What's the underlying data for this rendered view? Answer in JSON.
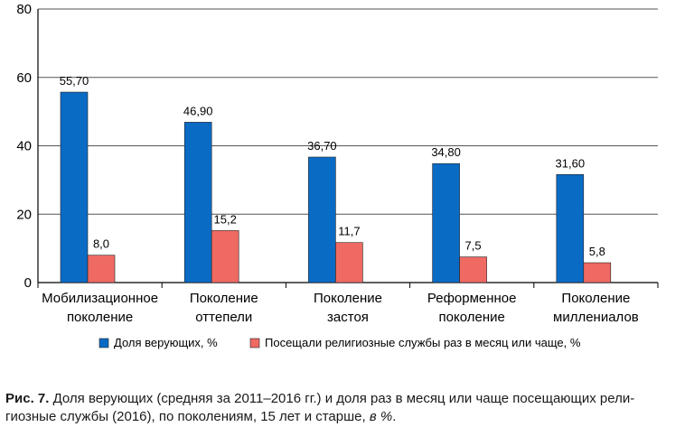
{
  "chart_data": {
    "type": "bar",
    "categories": [
      [
        "Мобилизационное",
        "поколение"
      ],
      [
        "Поколение",
        "оттепели"
      ],
      [
        "Поколение",
        "застоя"
      ],
      [
        "Реформенное",
        "поколение"
      ],
      [
        "Поколение",
        "миллениалов"
      ]
    ],
    "series": [
      {
        "name": "Доля верующих, %",
        "values": [
          55.7,
          46.9,
          36.7,
          34.8,
          31.6
        ],
        "labels": [
          "55,70",
          "46,90",
          "36,70",
          "34,80",
          "31,60"
        ],
        "color": "#0a6bc4"
      },
      {
        "name": "Посещали религиозные службы раз в месяц или чаще, %",
        "values": [
          8.0,
          15.2,
          11.7,
          7.5,
          5.8
        ],
        "labels": [
          "8,0",
          "15,2",
          "11,7",
          "7,5",
          "5,8"
        ],
        "color": "#ee6a63"
      }
    ],
    "ylim": [
      0,
      80
    ],
    "yticks": [
      0,
      20,
      40,
      60,
      80
    ],
    "grid": true,
    "legend_position": "bottom"
  },
  "caption": {
    "prefix": "Рис. 7.",
    "line1": " Доля верующих (средняя за 2011–2016 гг.) и доля раз в месяц или чаще посещающих рели-",
    "line2_a": "гиозные службы (2016), по поколениям, 15 лет и старше, ",
    "line2_b": "в %",
    "line2_c": "."
  }
}
